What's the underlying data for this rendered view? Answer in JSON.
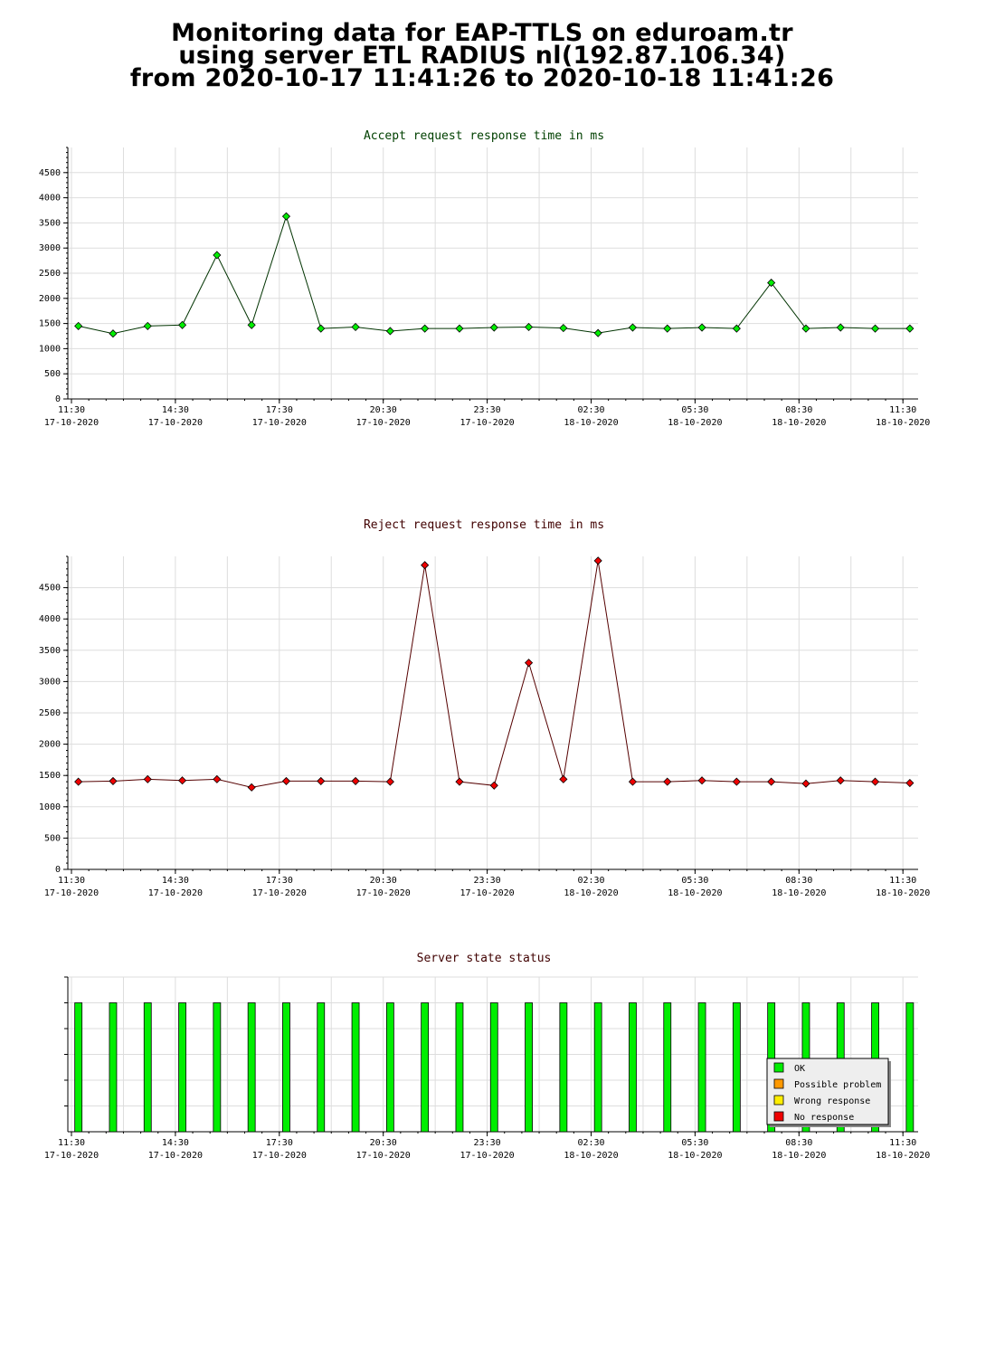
{
  "page": {
    "title_lines": [
      "Monitoring data for EAP-TTLS on eduroam.tr",
      "using server ETL RADIUS nl(192.87.106.34)",
      "from 2020-10-17 11:41:26 to 2020-10-18 11:41:26"
    ]
  },
  "chart_data": [
    {
      "type": "line",
      "title": "Accept request response time in ms",
      "title_color": "#004000",
      "line_color": "#003300",
      "marker_color": "#00ee00",
      "ylim": [
        0,
        5000
      ],
      "yticks": [
        0,
        500,
        1000,
        1500,
        2000,
        2500,
        3000,
        3500,
        4000,
        4500
      ],
      "xrange": [
        0,
        24
      ],
      "xticks": [
        {
          "x": 0,
          "time": "11:30",
          "date": "17-10-2020"
        },
        {
          "x": 3,
          "time": "14:30",
          "date": "17-10-2020"
        },
        {
          "x": 6,
          "time": "17:30",
          "date": "17-10-2020"
        },
        {
          "x": 9,
          "time": "20:30",
          "date": "17-10-2020"
        },
        {
          "x": 12,
          "time": "23:30",
          "date": "17-10-2020"
        },
        {
          "x": 15,
          "time": "02:30",
          "date": "18-10-2020"
        },
        {
          "x": 18,
          "time": "05:30",
          "date": "18-10-2020"
        },
        {
          "x": 21,
          "time": "08:30",
          "date": "18-10-2020"
        },
        {
          "x": 24,
          "time": "11:30",
          "date": "18-10-2020"
        }
      ],
      "x": [
        0.2,
        1.2,
        2.2,
        3.2,
        4.2,
        5.2,
        6.2,
        7.2,
        8.2,
        9.2,
        10.2,
        11.2,
        12.2,
        13.2,
        14.2,
        15.2,
        16.2,
        17.2,
        18.2,
        19.2,
        20.2,
        21.2,
        22.2,
        23.2,
        24.2
      ],
      "values": [
        1450,
        1300,
        1450,
        1470,
        2860,
        1470,
        3630,
        1400,
        1430,
        1350,
        1400,
        1400,
        1420,
        1430,
        1410,
        1310,
        1420,
        1400,
        1420,
        1400,
        2310,
        1400,
        1420,
        1400,
        1400
      ]
    },
    {
      "type": "line",
      "title": "Reject request response time in ms",
      "title_color": "#400000",
      "line_color": "#550000",
      "marker_color": "#ee0000",
      "ylim": [
        0,
        5000
      ],
      "yticks": [
        0,
        500,
        1000,
        1500,
        2000,
        2500,
        3000,
        3500,
        4000,
        4500
      ],
      "xrange": [
        0,
        24
      ],
      "xticks": [
        {
          "x": 0,
          "time": "11:30",
          "date": "17-10-2020"
        },
        {
          "x": 3,
          "time": "14:30",
          "date": "17-10-2020"
        },
        {
          "x": 6,
          "time": "17:30",
          "date": "17-10-2020"
        },
        {
          "x": 9,
          "time": "20:30",
          "date": "17-10-2020"
        },
        {
          "x": 12,
          "time": "23:30",
          "date": "17-10-2020"
        },
        {
          "x": 15,
          "time": "02:30",
          "date": "18-10-2020"
        },
        {
          "x": 18,
          "time": "05:30",
          "date": "18-10-2020"
        },
        {
          "x": 21,
          "time": "08:30",
          "date": "18-10-2020"
        },
        {
          "x": 24,
          "time": "11:30",
          "date": "18-10-2020"
        }
      ],
      "x": [
        0.2,
        1.2,
        2.2,
        3.2,
        4.2,
        5.2,
        6.2,
        7.2,
        8.2,
        9.2,
        10.2,
        11.2,
        12.2,
        13.2,
        14.2,
        15.2,
        16.2,
        17.2,
        18.2,
        19.2,
        20.2,
        21.2,
        22.2,
        23.2,
        24.2
      ],
      "values": [
        1400,
        1410,
        1440,
        1420,
        1440,
        1310,
        1410,
        1410,
        1410,
        1400,
        4860,
        1400,
        1340,
        3300,
        1440,
        4930,
        1400,
        1400,
        1420,
        1400,
        1400,
        1370,
        1420,
        1400,
        1380
      ]
    },
    {
      "type": "bar",
      "title": "Server state status",
      "title_color": "#400000",
      "ylim": [
        0,
        6
      ],
      "xrange": [
        0,
        24
      ],
      "xticks": [
        {
          "x": 0,
          "time": "11:30",
          "date": "17-10-2020"
        },
        {
          "x": 3,
          "time": "14:30",
          "date": "17-10-2020"
        },
        {
          "x": 6,
          "time": "17:30",
          "date": "17-10-2020"
        },
        {
          "x": 9,
          "time": "20:30",
          "date": "17-10-2020"
        },
        {
          "x": 12,
          "time": "23:30",
          "date": "17-10-2020"
        },
        {
          "x": 15,
          "time": "02:30",
          "date": "18-10-2020"
        },
        {
          "x": 18,
          "time": "05:30",
          "date": "18-10-2020"
        },
        {
          "x": 21,
          "time": "08:30",
          "date": "18-10-2020"
        },
        {
          "x": 24,
          "time": "11:30",
          "date": "18-10-2020"
        }
      ],
      "x": [
        0.2,
        1.2,
        2.2,
        3.2,
        4.2,
        5.2,
        6.2,
        7.2,
        8.2,
        9.2,
        10.2,
        11.2,
        12.2,
        13.2,
        14.2,
        15.2,
        16.2,
        17.2,
        18.2,
        19.2,
        20.2,
        21.2,
        22.2,
        23.2,
        24.2
      ],
      "values": [
        5,
        5,
        5,
        5,
        5,
        5,
        5,
        5,
        5,
        5,
        5,
        5,
        5,
        5,
        5,
        5,
        5,
        5,
        5,
        5,
        5,
        5,
        5,
        5,
        5
      ],
      "bar_color": "#00ee00",
      "legend": [
        {
          "label": "OK",
          "color": "#00ee00"
        },
        {
          "label": "Possible problem",
          "color": "#ff9900"
        },
        {
          "label": "Wrong response",
          "color": "#ffee00"
        },
        {
          "label": "No response",
          "color": "#ee0000"
        }
      ],
      "legend_position": "bottom-right"
    }
  ]
}
